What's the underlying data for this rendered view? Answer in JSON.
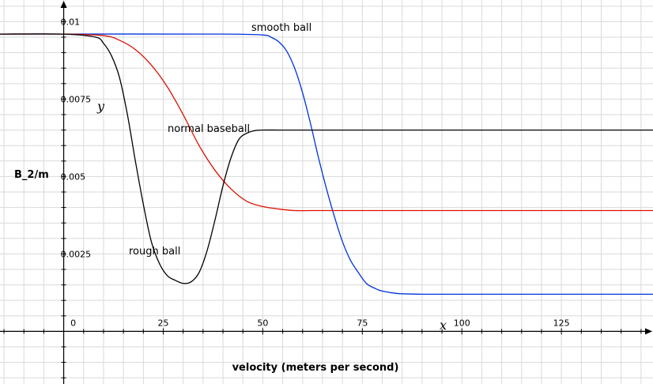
{
  "chart_data": {
    "type": "line",
    "xlabel": "velocity (meters per second)",
    "ylabel": "B_2/m",
    "x_axis_letter": "x",
    "y_axis_letter": "y",
    "xlim": [
      -16,
      148
    ],
    "ylim": [
      -0.0017,
      0.0107
    ],
    "x_ticks": [
      0,
      25,
      50,
      75,
      100,
      125
    ],
    "x_tick_labels": [
      "0",
      "25",
      "50",
      "75",
      "100",
      "125"
    ],
    "y_ticks": [
      0.0025,
      0.005,
      0.0075,
      0.01
    ],
    "y_tick_labels": [
      "0.0025",
      "0.005",
      "0.0075",
      "0.01"
    ],
    "grid": true,
    "series": [
      {
        "name": "smooth ball",
        "color": "#0033dd",
        "x": [
          -16,
          0,
          40,
          50,
          52,
          54,
          56,
          58,
          60,
          62,
          64,
          66,
          68,
          70,
          72,
          74,
          76,
          78,
          80,
          84,
          90,
          100,
          148
        ],
        "y": [
          0.0096,
          0.0096,
          0.0096,
          0.00957,
          0.0095,
          0.00935,
          0.00905,
          0.0085,
          0.0077,
          0.0067,
          0.0056,
          0.0046,
          0.0037,
          0.0029,
          0.0023,
          0.0019,
          0.00155,
          0.0014,
          0.0013,
          0.00122,
          0.0012,
          0.0012,
          0.0012
        ]
      },
      {
        "name": "normal baseball",
        "color": "#dd1100",
        "x": [
          -16,
          0,
          10,
          14,
          18,
          22,
          26,
          30,
          34,
          38,
          42,
          46,
          50,
          54,
          58,
          62,
          70,
          148
        ],
        "y": [
          0.0096,
          0.0096,
          0.00955,
          0.0094,
          0.0091,
          0.0086,
          0.0079,
          0.007,
          0.006,
          0.0052,
          0.0046,
          0.0042,
          0.00403,
          0.00395,
          0.0039,
          0.0039,
          0.0039,
          0.0039
        ]
      },
      {
        "name": "rough ball",
        "color": "#000000",
        "x": [
          -16,
          0,
          8,
          10,
          12,
          14,
          16,
          18,
          20,
          22,
          24,
          26,
          28,
          30,
          32,
          34,
          36,
          38,
          40,
          42,
          44,
          46,
          48,
          50,
          54,
          60,
          148
        ],
        "y": [
          0.0096,
          0.0096,
          0.0095,
          0.0093,
          0.0089,
          0.0082,
          0.007,
          0.0055,
          0.0041,
          0.0029,
          0.0022,
          0.0018,
          0.00165,
          0.00155,
          0.0016,
          0.0019,
          0.0026,
          0.0036,
          0.0047,
          0.0056,
          0.0062,
          0.0064,
          0.00648,
          0.0065,
          0.0065,
          0.0065,
          0.0065
        ]
      }
    ]
  }
}
